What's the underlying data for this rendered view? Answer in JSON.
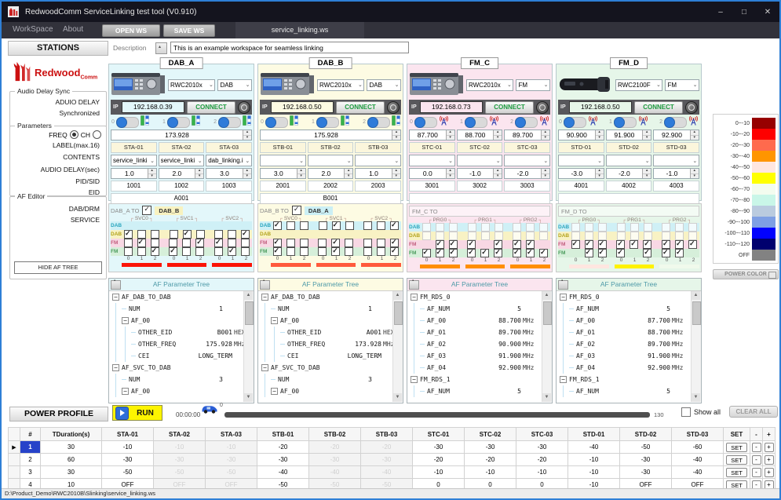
{
  "window": {
    "title": "RedwoodComm ServiceLinking test tool (V0.910)",
    "minimize": "–",
    "maximize": "□",
    "close": "✕"
  },
  "menubar": {
    "workspace": "WorkSpace",
    "about": "About",
    "open_ws": "OPEN WS",
    "save_ws": "SAVE WS",
    "tab": "service_linking.ws"
  },
  "header": {
    "stations_title": "STATIONS",
    "description_label": "Description",
    "description_value": "This is an example workspace for seamless linking"
  },
  "sidebar": {
    "logo_main": "Redwood",
    "logo_sub": "Comm",
    "audio_group": "Audio Delay Sync",
    "audio_line1": "ADUIO DELAY",
    "audio_line2": "Synchronized",
    "param_group": "Parameters",
    "freq": "FREQ",
    "ch": "CH",
    "label": "LABEL(max.16)",
    "contents": "CONTENTS",
    "delay": "AUDIO DELAY(sec)",
    "pid": "PID/SID",
    "eid": "EID",
    "af_group": "AF Editor",
    "dab_drm": "DAB/DRM",
    "service": "SERVICE",
    "hide": "HIDE AF TREE"
  },
  "stations": [
    {
      "id": "dab-a",
      "name": "DAB_A",
      "theme": "cyan",
      "device": "bench",
      "model": "RWC2010x",
      "mode": "DAB",
      "ip": "192.168.0.39",
      "connect": "CONNECT",
      "channel_nums": [
        "0",
        "1",
        "2"
      ],
      "freqs": [
        "173.928"
      ],
      "labels": [
        "STA-01",
        "STA-02",
        "STA-03"
      ],
      "contents": [
        "service_linki",
        "service_linki",
        "dab_linking.i"
      ],
      "delays": [
        "1.0",
        "2.0",
        "3.0"
      ],
      "pids": [
        "1001",
        "1002",
        "1003"
      ],
      "eid": "A001",
      "af": {
        "title": "DAB_A TO",
        "partner": {
          "label": "DAB_B",
          "checked": true,
          "chip": "yellow"
        },
        "groups": [
          "SVC0",
          "SVC1",
          "SVC2"
        ],
        "col_nums": [
          "0",
          "1",
          "2"
        ],
        "rows": [
          {
            "label": "DAB",
            "theme": "cyan",
            "cells": [
              null,
              null,
              null,
              null,
              null,
              null,
              null,
              null,
              null
            ]
          },
          {
            "label": "DAB",
            "theme": "yellow",
            "cells": [
              1,
              0,
              0,
              0,
              1,
              0,
              0,
              0,
              1
            ]
          },
          {
            "label": "FM",
            "theme": "pink",
            "cells": [
              0,
              1,
              0,
              0,
              0,
              1,
              1,
              0,
              0
            ]
          },
          {
            "label": "FM",
            "theme": "green",
            "cells": [
              0,
              0,
              1,
              1,
              0,
              0,
              0,
              1,
              0
            ]
          }
        ],
        "bars": [
          "#FB1508",
          "#FB1508",
          "#FB1508"
        ]
      },
      "tree": {
        "title": "AF Parameter Tree",
        "rows": [
          {
            "depth": 0,
            "expand": true,
            "name": "AF_DAB_TO_DAB",
            "value": "",
            "unit": ""
          },
          {
            "depth": 1,
            "expand": false,
            "name": "NUM",
            "value": "1",
            "unit": ""
          },
          {
            "depth": 1,
            "expand": true,
            "name": "AF_00",
            "value": "",
            "unit": ""
          },
          {
            "depth": 2,
            "expand": false,
            "name": "OTHER_EID",
            "value": "B001",
            "unit": "HEX"
          },
          {
            "depth": 2,
            "expand": false,
            "name": "OTHER_FREQ",
            "value": "175.928",
            "unit": "MHz"
          },
          {
            "depth": 2,
            "expand": false,
            "name": "CEI",
            "value": "LONG_TERM",
            "unit": ""
          },
          {
            "depth": 0,
            "expand": true,
            "name": "AF_SVC_TO_DAB",
            "value": "",
            "unit": ""
          },
          {
            "depth": 1,
            "expand": false,
            "name": "NUM",
            "value": "3",
            "unit": ""
          },
          {
            "depth": 1,
            "expand": true,
            "name": "AF_00",
            "value": "",
            "unit": ""
          }
        ]
      }
    },
    {
      "id": "dab-b",
      "name": "DAB_B",
      "theme": "yellow",
      "device": "bench",
      "model": "RWC2010x",
      "mode": "DAB",
      "ip": "192.168.0.50",
      "connect": "CONNECT",
      "channel_nums": [
        "0",
        "1",
        "2"
      ],
      "freqs": [
        "175.928"
      ],
      "labels": [
        "STB-01",
        "STB-02",
        "STB-03"
      ],
      "contents": [
        "",
        "",
        ""
      ],
      "delays": [
        "3.0",
        "2.0",
        "1.0"
      ],
      "pids": [
        "2001",
        "2002",
        "2003"
      ],
      "eid": "B001",
      "af": {
        "title": "DAB_B TO",
        "partner": {
          "label": "DAB_A",
          "checked": true,
          "chip": "cyan"
        },
        "groups": [
          "SVC0",
          "SVC1",
          "SVC2"
        ],
        "col_nums": [
          "0",
          "1",
          "2"
        ],
        "rows": [
          {
            "label": "DAB",
            "theme": "cyan",
            "cells": [
              1,
              0,
              0,
              0,
              1,
              0,
              0,
              0,
              1
            ]
          },
          {
            "label": "DAB",
            "theme": "yellow",
            "cells": [
              null,
              null,
              null,
              null,
              null,
              null,
              null,
              null,
              null
            ]
          },
          {
            "label": "FM",
            "theme": "pink",
            "cells": [
              1,
              0,
              0,
              0,
              1,
              0,
              0,
              0,
              1
            ]
          },
          {
            "label": "FM",
            "theme": "green",
            "cells": [
              1,
              0,
              0,
              0,
              1,
              0,
              0,
              0,
              1
            ]
          }
        ],
        "bars": [
          "#FF5A3C",
          "#FF5A3C",
          "#FF5A3C"
        ]
      },
      "tree": {
        "title": "AF Parameter Tree",
        "rows": [
          {
            "depth": 0,
            "expand": true,
            "name": "AF_DAB_TO_DAB",
            "value": "",
            "unit": ""
          },
          {
            "depth": 1,
            "expand": false,
            "name": "NUM",
            "value": "1",
            "unit": ""
          },
          {
            "depth": 1,
            "expand": true,
            "name": "AF_00",
            "value": "",
            "unit": ""
          },
          {
            "depth": 2,
            "expand": false,
            "name": "OTHER_EID",
            "value": "A001",
            "unit": "HEX"
          },
          {
            "depth": 2,
            "expand": false,
            "name": "OTHER_FREQ",
            "value": "173.928",
            "unit": "MHz"
          },
          {
            "depth": 2,
            "expand": false,
            "name": "CEI",
            "value": "LONG_TERM",
            "unit": ""
          },
          {
            "depth": 0,
            "expand": true,
            "name": "AF_SVC_TO_DAB",
            "value": "",
            "unit": ""
          },
          {
            "depth": 1,
            "expand": false,
            "name": "NUM",
            "value": "3",
            "unit": ""
          },
          {
            "depth": 1,
            "expand": true,
            "name": "AF_00",
            "value": "",
            "unit": ""
          }
        ]
      }
    },
    {
      "id": "fm-c",
      "name": "FM_C",
      "theme": "pink",
      "device": "bench",
      "model": "RWC2010x",
      "mode": "FM",
      "ip": "192.168.0.73",
      "connect": "CONNECT",
      "channel_nums": [
        "0",
        "1",
        "2"
      ],
      "freqs": [
        "87.700",
        "88.700",
        "89.700"
      ],
      "labels": [
        "STC-01",
        "STC-02",
        "STC-03"
      ],
      "contents": [
        "",
        "",
        ""
      ],
      "delays": [
        "0.0",
        "-1.0",
        "-2.0"
      ],
      "pids": [
        "3001",
        "3002",
        "3003"
      ],
      "eid": "",
      "af": {
        "title": "FM_C TO",
        "partner": null,
        "groups": [
          "PRG0",
          "PRG1",
          "PRG2"
        ],
        "col_nums": [
          "0",
          "1",
          "2"
        ],
        "rows": [
          {
            "label": "DAB",
            "theme": "cyan",
            "cells": [
              2,
              2,
              2,
              2,
              2,
              2,
              2,
              2,
              2
            ]
          },
          {
            "label": "DAB",
            "theme": "yellow",
            "cells": [
              2,
              2,
              2,
              2,
              2,
              2,
              2,
              2,
              2
            ]
          },
          {
            "label": "FM",
            "theme": "pink",
            "cells": [
              null,
              1,
              1,
              1,
              null,
              1,
              1,
              1,
              null
            ]
          },
          {
            "label": "FM",
            "theme": "green",
            "cells": [
              1,
              1,
              1,
              1,
              1,
              1,
              1,
              1,
              1
            ]
          }
        ],
        "bars": [
          "#FF8E00",
          "#FF8E00",
          "#FF8E00"
        ]
      },
      "tree": {
        "title": "AF Parameter Tree",
        "rows": [
          {
            "depth": 0,
            "expand": true,
            "name": "FM_RDS_0",
            "value": "",
            "unit": ""
          },
          {
            "depth": 1,
            "expand": false,
            "name": "AF_NUM",
            "value": "5",
            "unit": ""
          },
          {
            "depth": 1,
            "expand": false,
            "name": "AF_00",
            "value": "88.700",
            "unit": "MHz"
          },
          {
            "depth": 1,
            "expand": false,
            "name": "AF_01",
            "value": "89.700",
            "unit": "MHz"
          },
          {
            "depth": 1,
            "expand": false,
            "name": "AF_02",
            "value": "90.900",
            "unit": "MHz"
          },
          {
            "depth": 1,
            "expand": false,
            "name": "AF_03",
            "value": "91.900",
            "unit": "MHz"
          },
          {
            "depth": 1,
            "expand": false,
            "name": "AF_04",
            "value": "92.900",
            "unit": "MHz"
          },
          {
            "depth": 0,
            "expand": true,
            "name": "FM_RDS_1",
            "value": "",
            "unit": ""
          },
          {
            "depth": 1,
            "expand": false,
            "name": "AF_NUM",
            "value": "5",
            "unit": ""
          }
        ]
      }
    },
    {
      "id": "fm-d",
      "name": "FM_D",
      "theme": "green",
      "device": "handheld",
      "model": "RWC2100F",
      "mode": "FM",
      "ip": "192.168.0.50",
      "connect": "CONNECT",
      "channel_nums": [
        "0",
        "1",
        "2"
      ],
      "freqs": [
        "90.900",
        "91.900",
        "92.900"
      ],
      "labels": [
        "STD-01",
        "STD-02",
        "STD-03"
      ],
      "contents": [
        "",
        "",
        ""
      ],
      "delays": [
        "-3.0",
        "-2.0",
        "-1.0"
      ],
      "pids": [
        "4001",
        "4002",
        "4003"
      ],
      "eid": "",
      "af": {
        "title": "FM_D TO",
        "partner": null,
        "groups": [
          "PRG0",
          "PRG1",
          "PRG2"
        ],
        "col_nums": [
          "0",
          "1",
          "2"
        ],
        "rows": [
          {
            "label": "DAB",
            "theme": "cyan",
            "cells": [
              2,
              2,
              2,
              2,
              2,
              2,
              2,
              2,
              2
            ]
          },
          {
            "label": "DAB",
            "theme": "yellow",
            "cells": [
              2,
              2,
              2,
              2,
              2,
              2,
              2,
              2,
              2
            ]
          },
          {
            "label": "FM",
            "theme": "pink",
            "cells": [
              1,
              1,
              1,
              1,
              1,
              1,
              1,
              1,
              1
            ]
          },
          {
            "label": "FM",
            "theme": "green",
            "cells": [
              null,
              1,
              1,
              1,
              null,
              1,
              1,
              1,
              null
            ]
          }
        ],
        "bars": [
          "#FFE6E0",
          "#FFF200",
          "#F0FAEC"
        ]
      },
      "tree": {
        "title": "AF Parameter Tree",
        "rows": [
          {
            "depth": 0,
            "expand": true,
            "name": "FM_RDS_0",
            "value": "",
            "unit": ""
          },
          {
            "depth": 1,
            "expand": false,
            "name": "AF_NUM",
            "value": "5",
            "unit": ""
          },
          {
            "depth": 1,
            "expand": false,
            "name": "AF_00",
            "value": "87.700",
            "unit": "MHz"
          },
          {
            "depth": 1,
            "expand": false,
            "name": "AF_01",
            "value": "88.700",
            "unit": "MHz"
          },
          {
            "depth": 1,
            "expand": false,
            "name": "AF_02",
            "value": "89.700",
            "unit": "MHz"
          },
          {
            "depth": 1,
            "expand": false,
            "name": "AF_03",
            "value": "91.900",
            "unit": "MHz"
          },
          {
            "depth": 1,
            "expand": false,
            "name": "AF_04",
            "value": "92.900",
            "unit": "MHz"
          },
          {
            "depth": 0,
            "expand": true,
            "name": "FM_RDS_1",
            "value": "",
            "unit": ""
          },
          {
            "depth": 1,
            "expand": false,
            "name": "AF_NUM",
            "value": "5",
            "unit": ""
          }
        ]
      }
    }
  ],
  "legend": {
    "button": "POWER COLOR",
    "entries": [
      {
        "label": "0~-10",
        "color": "#970000"
      },
      {
        "label": "-10~-20",
        "color": "#FE0000"
      },
      {
        "label": "-20~-30",
        "color": "#FF6A4D"
      },
      {
        "label": "-30~-40",
        "color": "#FF9500"
      },
      {
        "label": "-40~-50",
        "color": "#FFE6E0"
      },
      {
        "label": "-50~-60",
        "color": "#FFFF00"
      },
      {
        "label": "-60~-70",
        "color": "#F3FCEF"
      },
      {
        "label": "-70~-80",
        "color": "#C9F6E8"
      },
      {
        "label": "-80~-90",
        "color": "#BACBDF"
      },
      {
        "label": "-90~-100",
        "color": "#7E9FE4"
      },
      {
        "label": "-100~-110",
        "color": "#0202FE"
      },
      {
        "label": "-110~-120",
        "color": "#00006E"
      },
      {
        "label": "OFF",
        "color": "#828282"
      }
    ]
  },
  "power_profile": {
    "title": "POWER PROFILE",
    "run_label": "RUN",
    "timer": "00:00:00",
    "car_value": "0",
    "total_label": "130",
    "show_all_label": "Show all",
    "clear_all_label": "CLEAR ALL",
    "set_label": "SET",
    "minus_label": "-",
    "plus_label": "+",
    "columns": [
      "",
      "#",
      "TDuration(s)",
      "STA-01",
      "STA-02",
      "STA-03",
      "STB-01",
      "STB-02",
      "STB-03",
      "STC-01",
      "STC-02",
      "STC-03",
      "STD-01",
      "STD-02",
      "STD-03",
      "SET",
      "-",
      "+"
    ],
    "ghost_cols": [
      1,
      2,
      4,
      5
    ],
    "rows": [
      {
        "num": "1",
        "selected": true,
        "duration": "30",
        "values": [
          "-10",
          "-10",
          "-10",
          "-20",
          "-20",
          "-20",
          "-30",
          "-30",
          "-30",
          "-40",
          "-50",
          "-60"
        ]
      },
      {
        "num": "2",
        "selected": false,
        "duration": "60",
        "values": [
          "-30",
          "-30",
          "-30",
          "-30",
          "-30",
          "-30",
          "-20",
          "-20",
          "-20",
          "-10",
          "-30",
          "-40"
        ]
      },
      {
        "num": "3",
        "selected": false,
        "duration": "30",
        "values": [
          "-50",
          "-50",
          "-50",
          "-40",
          "-40",
          "-40",
          "-10",
          "-10",
          "-10",
          "-10",
          "-30",
          "-40"
        ]
      },
      {
        "num": "4",
        "selected": false,
        "duration": "10",
        "values": [
          "OFF",
          "OFF",
          "OFF",
          "-50",
          "-50",
          "-50",
          "0",
          "0",
          "0",
          "-10",
          "OFF",
          "OFF"
        ]
      }
    ]
  },
  "statusbar": {
    "path": "D:\\Product_Demo\\RWC2010B\\Slinking\\service_linking.ws"
  }
}
